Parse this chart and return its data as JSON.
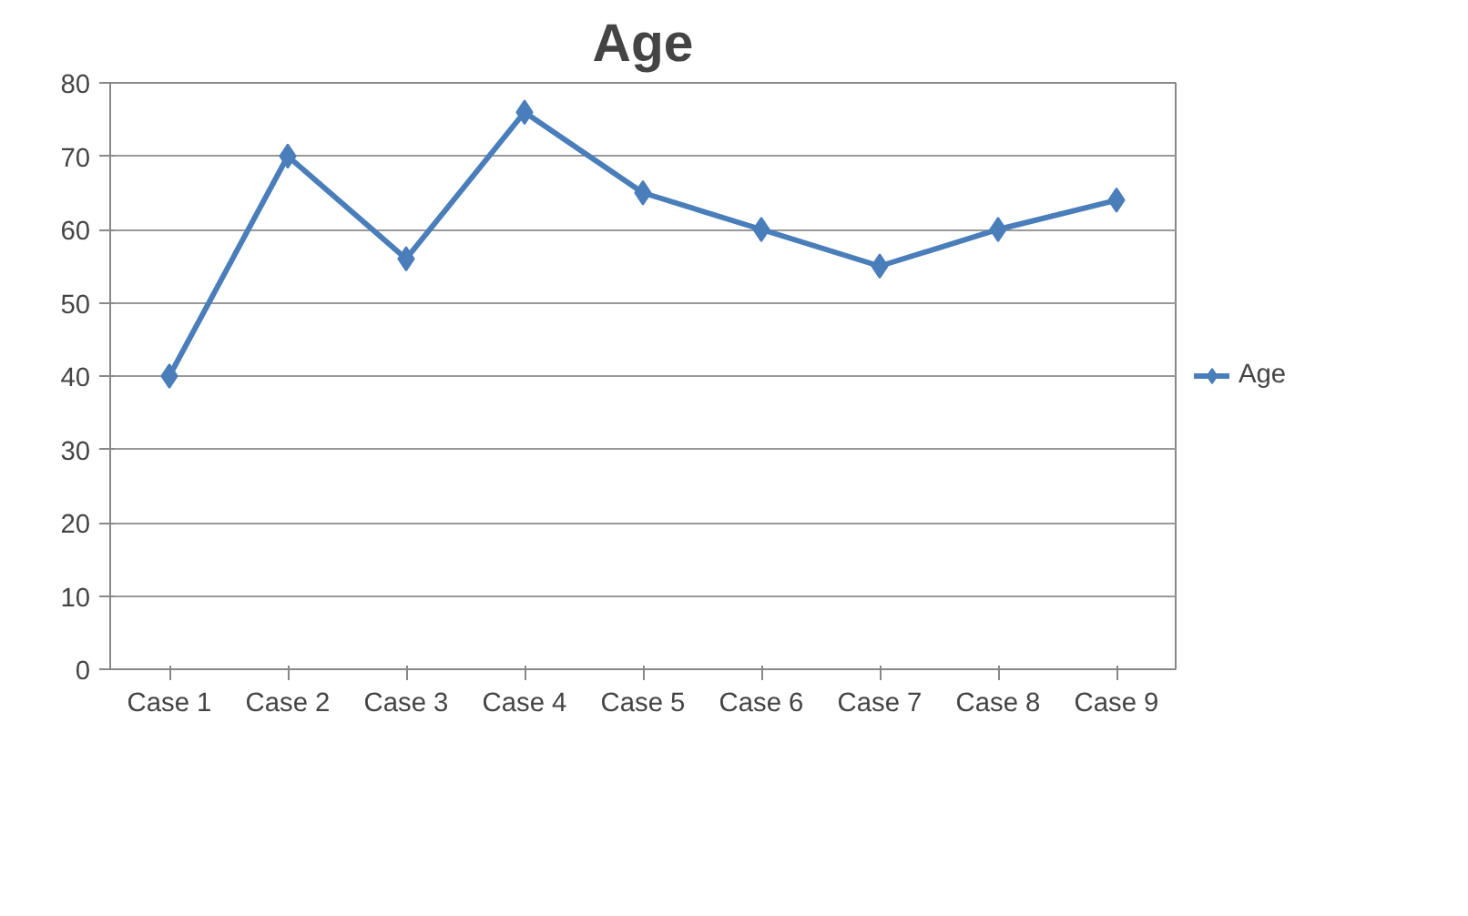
{
  "chart_data": {
    "type": "line",
    "title": "Age",
    "categories": [
      "Case 1",
      "Case 2",
      "Case 3",
      "Case 4",
      "Case 5",
      "Case 6",
      "Case 7",
      "Case 8",
      "Case 9"
    ],
    "series": [
      {
        "name": "Age",
        "color": "#4a7ebb",
        "values": [
          40,
          70,
          56,
          76,
          65,
          60,
          55,
          60,
          64
        ]
      }
    ],
    "ylim": [
      0,
      80
    ],
    "yticks": [
      0,
      10,
      20,
      30,
      40,
      50,
      60,
      70,
      80
    ],
    "grid": "y",
    "legend": "right",
    "marker": "diamond",
    "line_style": "solid"
  }
}
